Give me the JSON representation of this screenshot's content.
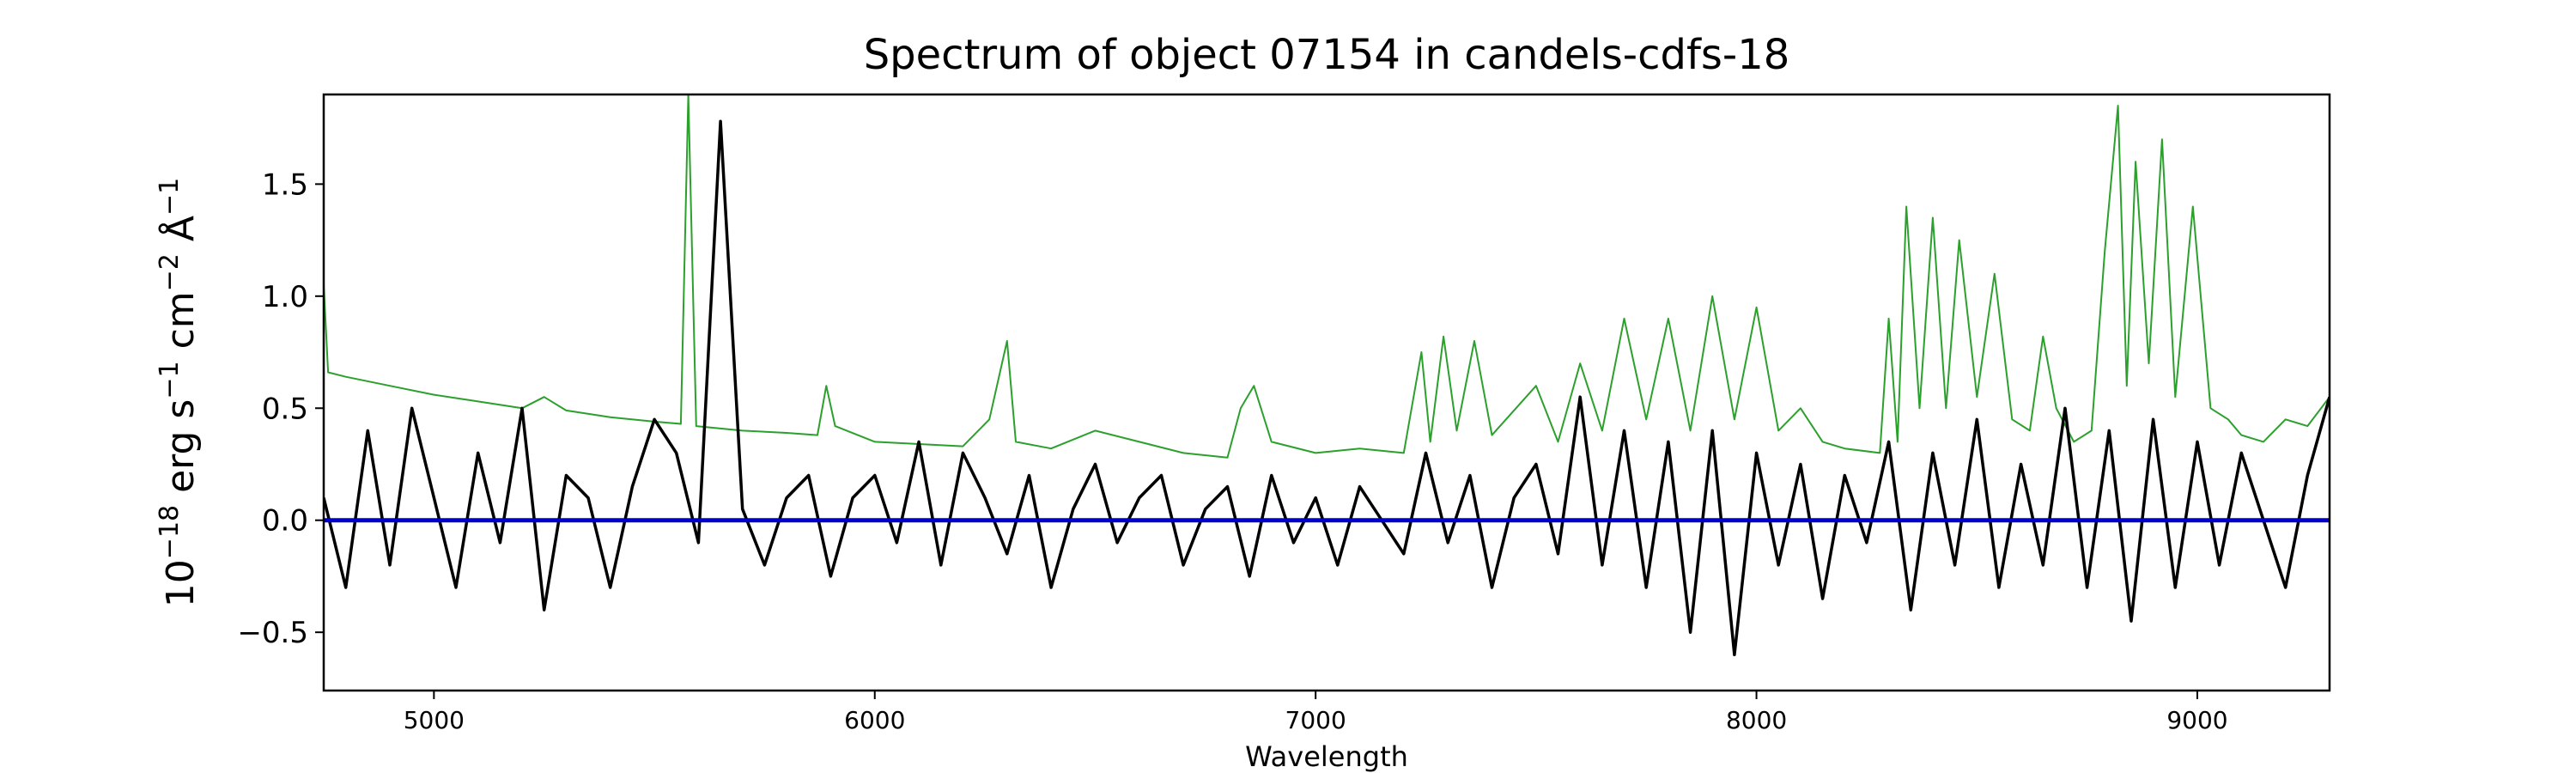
{
  "chart_data": {
    "type": "line",
    "title": "Spectrum of object 07154 in candels-cdfs-18",
    "xlabel": "Wavelength",
    "ylabel_parts": [
      "10",
      "−18",
      " erg s",
      "−1",
      " cm",
      "−2",
      " Å",
      "−1"
    ],
    "xlim": [
      4750,
      9300
    ],
    "ylim": [
      -0.76,
      1.9
    ],
    "xticks": [
      5000,
      6000,
      7000,
      8000,
      9000
    ],
    "yticks": [
      {
        "value": -0.5,
        "label": "−0.5"
      },
      {
        "value": 0,
        "label": "0.0"
      },
      {
        "value": 0.5,
        "label": "0.5"
      },
      {
        "value": 1,
        "label": "1.0"
      },
      {
        "value": 1.5,
        "label": "1.5"
      }
    ],
    "series": [
      {
        "color": "#2ca02c",
        "width": 2,
        "x": [
          4750,
          4760,
          4800,
          4900,
          5000,
          5100,
          5200,
          5250,
          5300,
          5400,
          5500,
          5560,
          5577,
          5595,
          5700,
          5800,
          5870,
          5890,
          5910,
          6000,
          6100,
          6200,
          6260,
          6300,
          6320,
          6400,
          6500,
          6600,
          6700,
          6800,
          6830,
          6860,
          6900,
          7000,
          7100,
          7200,
          7240,
          7260,
          7290,
          7320,
          7360,
          7400,
          7500,
          7550,
          7600,
          7650,
          7700,
          7750,
          7800,
          7850,
          7900,
          7950,
          8000,
          8050,
          8100,
          8150,
          8200,
          8280,
          8300,
          8320,
          8340,
          8370,
          8400,
          8430,
          8460,
          8500,
          8540,
          8580,
          8620,
          8650,
          8680,
          8720,
          8760,
          8790,
          8820,
          8840,
          8860,
          8890,
          8920,
          8950,
          8990,
          9030,
          9070,
          9100,
          9150,
          9200,
          9250,
          9300
        ],
        "values": [
          1.05,
          0.66,
          0.64,
          0.6,
          0.56,
          0.53,
          0.5,
          0.55,
          0.49,
          0.46,
          0.44,
          0.43,
          1.9,
          0.42,
          0.4,
          0.39,
          0.38,
          0.6,
          0.42,
          0.35,
          0.34,
          0.33,
          0.45,
          0.8,
          0.35,
          0.32,
          0.4,
          0.35,
          0.3,
          0.28,
          0.5,
          0.6,
          0.35,
          0.3,
          0.32,
          0.3,
          0.75,
          0.35,
          0.82,
          0.4,
          0.8,
          0.38,
          0.6,
          0.35,
          0.7,
          0.4,
          0.9,
          0.45,
          0.9,
          0.4,
          1.0,
          0.45,
          0.95,
          0.4,
          0.5,
          0.35,
          0.32,
          0.3,
          0.9,
          0.35,
          1.4,
          0.5,
          1.35,
          0.5,
          1.25,
          0.55,
          1.1,
          0.45,
          0.4,
          0.82,
          0.5,
          0.35,
          0.4,
          1.2,
          1.85,
          0.6,
          1.6,
          0.7,
          1.7,
          0.55,
          1.4,
          0.5,
          0.45,
          0.38,
          0.35,
          0.45,
          0.42,
          0.55
        ]
      },
      {
        "color": "#000000",
        "width": 3.5,
        "x": [
          4750,
          4800,
          4850,
          4900,
          4950,
          5000,
          5050,
          5100,
          5150,
          5200,
          5250,
          5300,
          5350,
          5400,
          5450,
          5500,
          5550,
          5600,
          5650,
          5700,
          5750,
          5800,
          5850,
          5900,
          5950,
          6000,
          6050,
          6100,
          6150,
          6200,
          6250,
          6300,
          6350,
          6400,
          6450,
          6500,
          6550,
          6600,
          6650,
          6700,
          6750,
          6800,
          6850,
          6900,
          6950,
          7000,
          7050,
          7100,
          7150,
          7200,
          7250,
          7300,
          7350,
          7400,
          7450,
          7500,
          7550,
          7600,
          7650,
          7700,
          7750,
          7800,
          7850,
          7900,
          7950,
          8000,
          8050,
          8100,
          8150,
          8200,
          8250,
          8300,
          8350,
          8400,
          8450,
          8500,
          8550,
          8600,
          8650,
          8700,
          8750,
          8800,
          8850,
          8900,
          8950,
          9000,
          9050,
          9100,
          9150,
          9200,
          9250,
          9300
        ],
        "values": [
          0.1,
          -0.3,
          0.4,
          -0.2,
          0.5,
          0.1,
          -0.3,
          0.3,
          -0.1,
          0.5,
          -0.4,
          0.2,
          0.1,
          -0.3,
          0.15,
          0.45,
          0.3,
          -0.1,
          1.78,
          0.05,
          -0.2,
          0.1,
          0.2,
          -0.25,
          0.1,
          0.2,
          -0.1,
          0.35,
          -0.2,
          0.3,
          0.1,
          -0.15,
          0.2,
          -0.3,
          0.05,
          0.25,
          -0.1,
          0.1,
          0.2,
          -0.2,
          0.05,
          0.15,
          -0.25,
          0.2,
          -0.1,
          0.1,
          -0.2,
          0.15,
          0,
          -0.15,
          0.3,
          -0.1,
          0.2,
          -0.3,
          0.1,
          0.25,
          -0.15,
          0.55,
          -0.2,
          0.4,
          -0.3,
          0.35,
          -0.5,
          0.4,
          -0.6,
          0.3,
          -0.2,
          0.25,
          -0.35,
          0.2,
          -0.1,
          0.35,
          -0.4,
          0.3,
          -0.2,
          0.45,
          -0.3,
          0.25,
          -0.2,
          0.5,
          -0.3,
          0.4,
          -0.45,
          0.45,
          -0.3,
          0.35,
          -0.2,
          0.3,
          0,
          -0.3,
          0.2,
          0.55
        ]
      },
      {
        "color": "#0000cc",
        "width": 5,
        "x": [
          4750,
          9300
        ],
        "values": [
          0,
          0
        ]
      }
    ]
  }
}
